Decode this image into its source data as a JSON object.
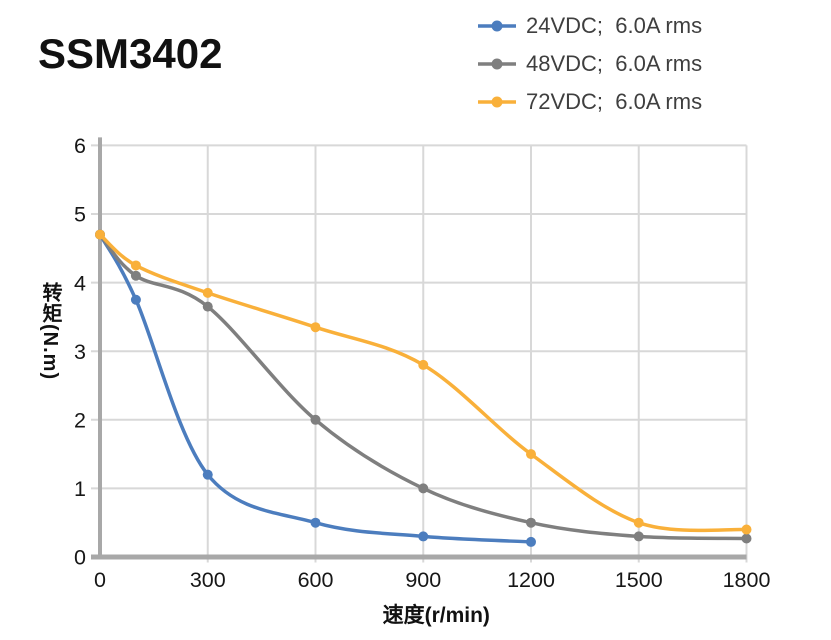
{
  "title": "SSM3402",
  "colors": {
    "series_blue": "#4C7DBE",
    "series_gray": "#7F7F7F",
    "series_yellow": "#F9B03A",
    "gridline": "#D8D8D8",
    "axis": "#A8A8A8",
    "tick_text": "#171717",
    "legend_text": "#3F3F3F"
  },
  "chart_data": {
    "type": "line",
    "title": "SSM3402",
    "xlabel": "速度(r/min)",
    "ylabel": "转矩(N.m)",
    "xlim": [
      0,
      1800
    ],
    "ylim": [
      0,
      6
    ],
    "x_ticks": [
      0,
      300,
      600,
      900,
      1200,
      1500,
      1800
    ],
    "y_ticks": [
      0,
      1,
      2,
      3,
      4,
      5,
      6
    ],
    "grid": true,
    "legend_position": "top-right",
    "marker": "circle",
    "line_style": "smooth",
    "series": [
      {
        "name": "24VDC;  6.0A rms",
        "color": "#4C7DBE",
        "points": [
          [
            0,
            4.7
          ],
          [
            100,
            3.75
          ],
          [
            300,
            1.2
          ],
          [
            600,
            0.5
          ],
          [
            900,
            0.3
          ],
          [
            1200,
            0.22
          ]
        ]
      },
      {
        "name": "48VDC;  6.0A rms",
        "color": "#7F7F7F",
        "points": [
          [
            0,
            4.7
          ],
          [
            100,
            4.1
          ],
          [
            300,
            3.65
          ],
          [
            600,
            2.0
          ],
          [
            900,
            1.0
          ],
          [
            1200,
            0.5
          ],
          [
            1500,
            0.3
          ],
          [
            1800,
            0.27
          ]
        ]
      },
      {
        "name": "72VDC;  6.0A rms",
        "color": "#F9B03A",
        "points": [
          [
            0,
            4.7
          ],
          [
            100,
            4.25
          ],
          [
            300,
            3.85
          ],
          [
            600,
            3.35
          ],
          [
            900,
            2.8
          ],
          [
            1200,
            1.5
          ],
          [
            1500,
            0.5
          ],
          [
            1800,
            0.4
          ]
        ]
      }
    ]
  }
}
